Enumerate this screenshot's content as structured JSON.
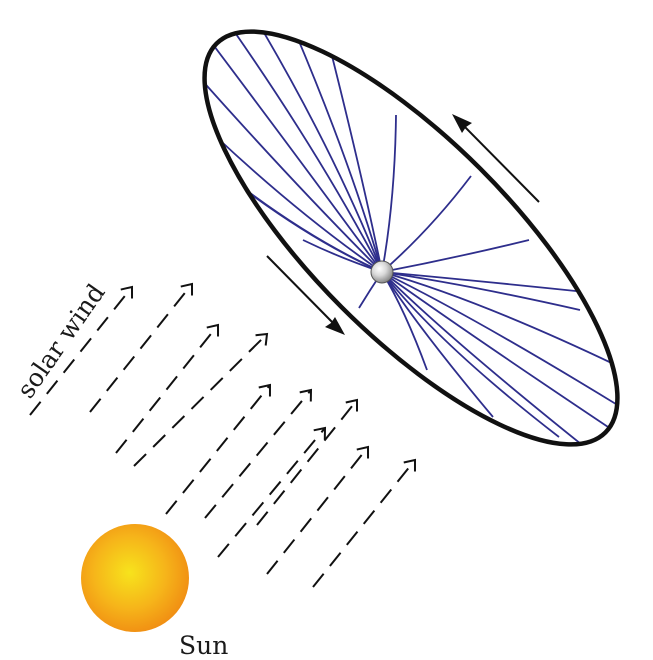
{
  "labels": {
    "solar_wind": "solar wind",
    "sun": "Sun"
  },
  "colors": {
    "disk_outline": "#111111",
    "field_lines": "#2e2e8c",
    "sun_center": "#f7e31c",
    "sun_mid": "#f6b51a",
    "sun_edge": "#f08a12",
    "wind_arrows": "#111111",
    "rotation_arrows": "#111111",
    "planet_highlight": "#f2f2f2",
    "planet_shadow": "#8c8c8c"
  },
  "icons": {
    "central_body": "sphere",
    "sun": "radial-gradient-disc"
  }
}
